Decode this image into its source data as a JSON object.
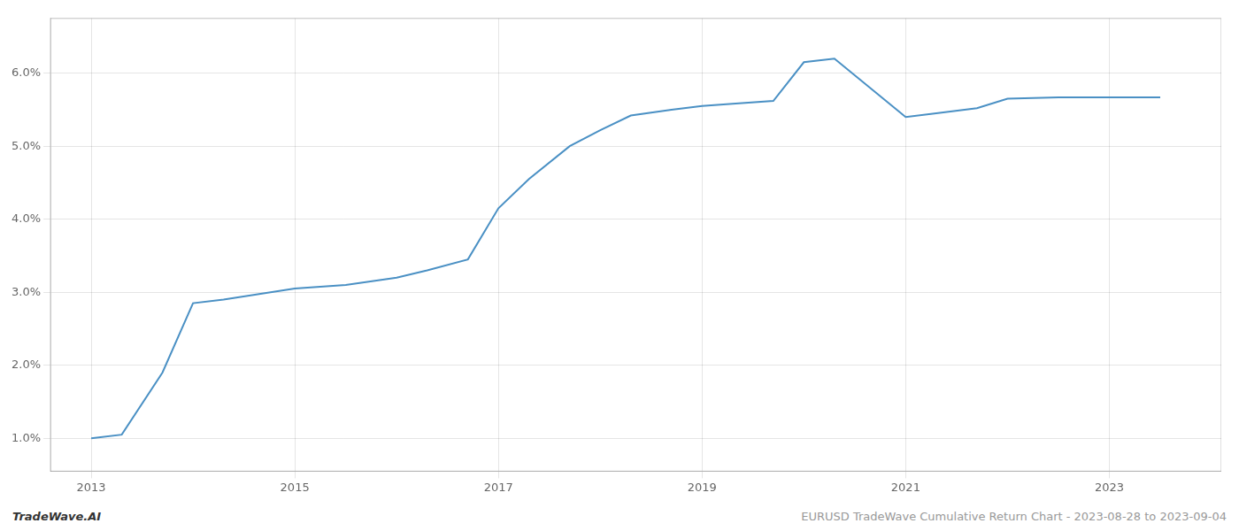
{
  "chart_data": {
    "type": "line",
    "x": [
      2013.0,
      2013.3,
      2013.7,
      2014.0,
      2014.3,
      2015.0,
      2015.5,
      2016.0,
      2016.3,
      2016.7,
      2017.0,
      2017.3,
      2017.7,
      2018.0,
      2018.3,
      2018.7,
      2019.0,
      2019.3,
      2019.7,
      2020.0,
      2020.3,
      2021.0,
      2021.3,
      2021.7,
      2022.0,
      2022.5,
      2023.0,
      2023.5
    ],
    "values": [
      1.0,
      1.05,
      1.9,
      2.85,
      2.9,
      3.05,
      3.1,
      3.2,
      3.3,
      3.45,
      4.15,
      4.55,
      5.0,
      5.22,
      5.42,
      5.5,
      5.55,
      5.58,
      5.62,
      6.15,
      6.2,
      5.4,
      5.45,
      5.52,
      5.65,
      5.67,
      5.67,
      5.67
    ],
    "color": "#4a90c4",
    "xlim": [
      2012.6,
      2024.1
    ],
    "xticks": [
      2013,
      2015,
      2017,
      2019,
      2021,
      2023
    ],
    "ylim": [
      0.55,
      6.75
    ],
    "yticks": [
      {
        "value": 1.0,
        "label": "1.0%"
      },
      {
        "value": 2.0,
        "label": "2.0%"
      },
      {
        "value": 3.0,
        "label": "3.0%"
      },
      {
        "value": 4.0,
        "label": "4.0%"
      },
      {
        "value": 5.0,
        "label": "5.0%"
      },
      {
        "value": 6.0,
        "label": "6.0%"
      }
    ],
    "grid": true,
    "annotations": [
      "TradeWave.AI",
      "EURUSD TradeWave Cumulative Return Chart - 2023-08-28 to 2023-09-04"
    ]
  }
}
